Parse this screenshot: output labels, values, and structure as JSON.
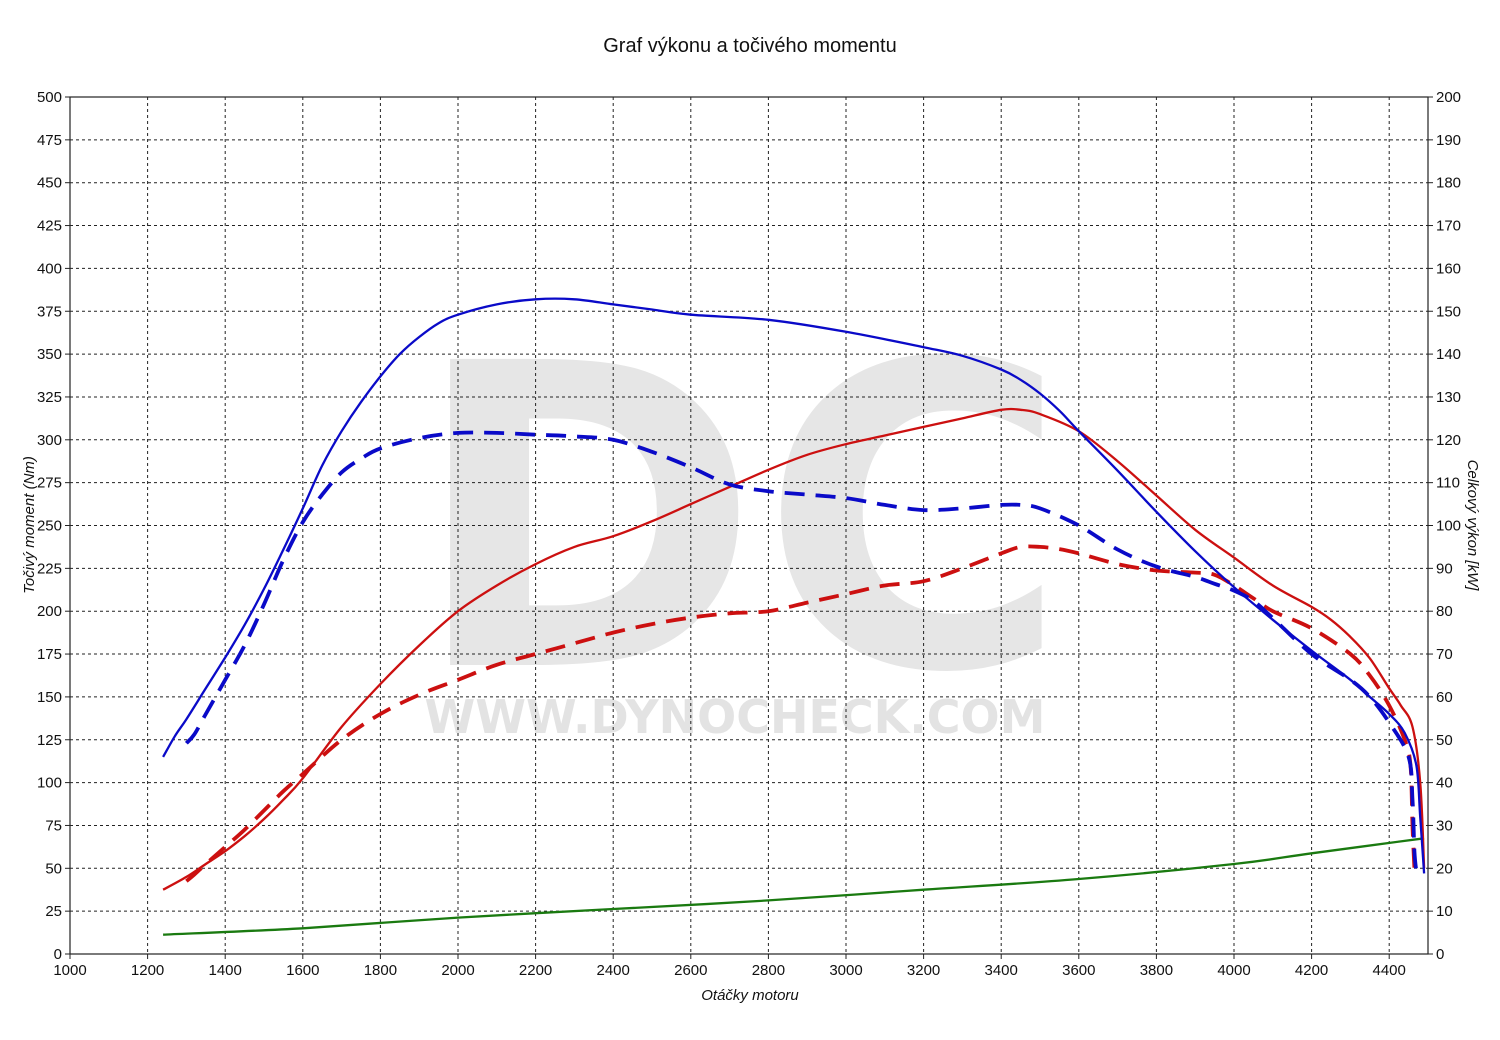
{
  "chart_data": {
    "type": "line",
    "title": "Graf výkonu a točivého momentu",
    "xlabel": "Otáčky motoru",
    "ylabel_left": "Točivý moment (Nm)",
    "ylabel_right": "Celkový výkon [kW]",
    "xlim": [
      1000,
      4500
    ],
    "ylim_left": [
      0,
      500
    ],
    "ylim_right": [
      0,
      200
    ],
    "x_ticks": [
      "1000",
      "1200",
      "1400",
      "1600",
      "1800",
      "2000",
      "2200",
      "2400",
      "2600",
      "2800",
      "3000",
      "3200",
      "3400",
      "3600",
      "3800",
      "4000",
      "4200",
      "4400"
    ],
    "y_left_ticks": [
      "0",
      "25",
      "50",
      "75",
      "100",
      "125",
      "150",
      "175",
      "200",
      "225",
      "250",
      "275",
      "300",
      "325",
      "350",
      "375",
      "400",
      "425",
      "450",
      "475",
      "500"
    ],
    "y_right_ticks": [
      "0",
      "10",
      "20",
      "30",
      "40",
      "50",
      "60",
      "70",
      "80",
      "90",
      "100",
      "110",
      "120",
      "130",
      "140",
      "150",
      "160",
      "170",
      "180",
      "190",
      "200"
    ],
    "grid": true,
    "watermark": {
      "logo": "DC",
      "url": "WWW.DYNOCHECK.COM"
    },
    "series": [
      {
        "color": "#0a0ac8",
        "style": "solid",
        "axis": "left",
        "x": [
          1240,
          1270,
          1300,
          1350,
          1400,
          1450,
          1500,
          1550,
          1600,
          1650,
          1700,
          1750,
          1800,
          1850,
          1900,
          1950,
          2000,
          2100,
          2200,
          2300,
          2400,
          2500,
          2600,
          2800,
          3000,
          3200,
          3300,
          3400,
          3450,
          3500,
          3550,
          3600,
          3700,
          3800,
          3900,
          4000,
          4100,
          4200,
          4300,
          4350,
          4400,
          4440,
          4470,
          4480,
          4490
        ],
        "y": [
          115,
          127,
          137,
          155,
          173,
          192,
          213,
          236,
          260,
          285,
          305,
          322,
          337,
          350,
          360,
          368,
          373,
          379,
          382,
          382,
          379,
          376,
          373,
          370,
          363,
          354,
          349,
          341,
          335,
          327,
          317,
          305,
          282,
          258,
          235,
          214,
          195,
          177,
          160,
          150,
          140,
          129,
          110,
          80,
          47
        ]
      },
      {
        "color": "#0a0ac8",
        "style": "dashed",
        "axis": "left",
        "x": [
          1300,
          1320,
          1350,
          1400,
          1450,
          1500,
          1550,
          1600,
          1650,
          1700,
          1750,
          1800,
          1900,
          2000,
          2100,
          2200,
          2300,
          2400,
          2500,
          2600,
          2700,
          2800,
          2900,
          3000,
          3100,
          3200,
          3300,
          3400,
          3450,
          3500,
          3600,
          3700,
          3800,
          3900,
          3950,
          4000,
          4050,
          4100,
          4200,
          4300,
          4350,
          4400,
          4450,
          4460,
          4465,
          4470
        ],
        "y": [
          123,
          128,
          140,
          160,
          180,
          204,
          230,
          252,
          268,
          281,
          289,
          295,
          301,
          304,
          304,
          303,
          302,
          300,
          293,
          284,
          274,
          270,
          268,
          266,
          262,
          259,
          260,
          262,
          262,
          260,
          250,
          236,
          226,
          220,
          216,
          212,
          206,
          196,
          175,
          160,
          150,
          135,
          115,
          90,
          60,
          48
        ]
      },
      {
        "color": "#cc1010",
        "style": "solid",
        "axis": "right",
        "x": [
          1240,
          1300,
          1350,
          1400,
          1450,
          1500,
          1550,
          1600,
          1700,
          1800,
          1900,
          2000,
          2100,
          2200,
          2300,
          2400,
          2500,
          2600,
          2700,
          2800,
          2900,
          3000,
          3100,
          3200,
          3300,
          3400,
          3450,
          3500,
          3600,
          3700,
          3800,
          3900,
          4000,
          4100,
          4200,
          4250,
          4300,
          4350,
          4400,
          4430,
          4460,
          4480,
          4490
        ],
        "y": [
          15,
          18,
          21,
          24,
          27.5,
          31.5,
          36,
          41,
          53,
          63,
          72,
          80,
          86,
          91,
          95,
          97.5,
          101,
          105,
          109,
          113,
          116.5,
          119,
          121,
          123,
          125,
          127,
          127,
          126,
          122,
          115,
          107,
          99,
          92.5,
          86,
          81,
          78,
          74,
          69,
          62,
          58,
          53,
          40,
          20
        ]
      },
      {
        "color": "#cc1010",
        "style": "dashed",
        "axis": "right",
        "x": [
          1300,
          1320,
          1350,
          1400,
          1450,
          1500,
          1550,
          1600,
          1700,
          1800,
          1900,
          2000,
          2100,
          2200,
          2300,
          2400,
          2500,
          2600,
          2700,
          2800,
          2900,
          3000,
          3100,
          3200,
          3300,
          3400,
          3450,
          3500,
          3550,
          3600,
          3700,
          3800,
          3900,
          3950,
          4000,
          4050,
          4100,
          4200,
          4300,
          4350,
          4400,
          4440,
          4455,
          4460,
          4465
        ],
        "y": [
          17,
          18.5,
          21,
          25,
          29,
          33.5,
          38,
          42,
          50,
          56,
          60.5,
          64,
          67.5,
          70,
          72.5,
          75,
          77,
          78.5,
          79.5,
          80,
          82,
          84,
          86,
          87,
          90,
          93.5,
          95,
          95,
          94.5,
          93.5,
          91,
          89.5,
          89,
          88.5,
          86,
          83,
          80,
          76,
          70,
          65,
          58,
          50,
          44,
          30,
          20
        ]
      },
      {
        "color": "#1a7a10",
        "style": "solid",
        "axis": "right",
        "x": [
          1240,
          1600,
          2000,
          2400,
          2800,
          3200,
          3600,
          4000,
          4200,
          4490
        ],
        "y": [
          4.5,
          6,
          8.5,
          10.5,
          12.5,
          15,
          17.5,
          21,
          23.5,
          27
        ]
      }
    ]
  }
}
